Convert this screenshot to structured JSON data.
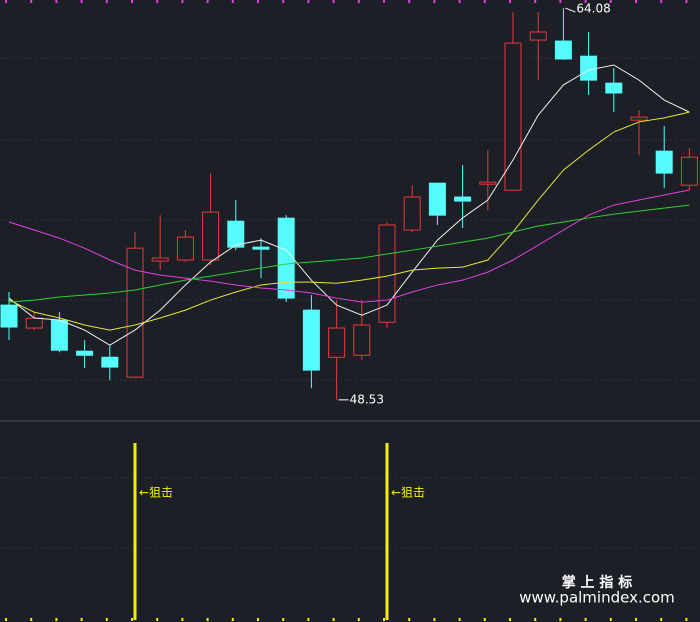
{
  "chart_data": [
    {
      "type": "candlestick",
      "ylim": [
        47.73,
        64.4
      ],
      "up_color": "#e8383a",
      "down_color": "#54fcfc",
      "open": [
        52.29,
        51.38,
        51.69,
        50.46,
        50.22,
        49.43,
        54.04,
        54.08,
        54.08,
        55.62,
        54.59,
        55.74,
        52.09,
        50.22,
        50.3,
        51.61,
        55.27,
        57.13,
        56.58,
        57.09,
        56.85,
        62.81,
        62.77,
        62.17,
        61.1,
        59.63,
        58.4,
        57.05
      ],
      "high": [
        52.81,
        52.01,
        52.01,
        50.9,
        50.7,
        55.19,
        55.86,
        55.27,
        57.53,
        56.46,
        54.95,
        55.86,
        52.69,
        52.49,
        52.49,
        55.59,
        57.05,
        57.13,
        57.85,
        58.44,
        63.9,
        63.92,
        64.08,
        63.13,
        61.7,
        60.03,
        59.4,
        58.52
      ],
      "low": [
        50.9,
        51.3,
        50.42,
        49.79,
        49.31,
        49.39,
        53.68,
        54.0,
        53.88,
        54.47,
        53.36,
        52.41,
        48.99,
        48.53,
        50.11,
        51.38,
        55.19,
        55.47,
        55.35,
        56.06,
        56.85,
        61.22,
        62.02,
        60.63,
        59.95,
        58.24,
        56.93,
        56.85
      ],
      "close": [
        51.42,
        51.77,
        50.5,
        50.3,
        49.83,
        54.55,
        54.16,
        54.99,
        55.98,
        54.59,
        54.51,
        52.57,
        49.71,
        51.38,
        51.5,
        55.47,
        56.58,
        55.86,
        56.42,
        57.17,
        62.69,
        63.13,
        62.06,
        61.22,
        60.71,
        59.75,
        57.53,
        58.16
      ],
      "series": [
        {
          "color": "#f0f0f0",
          "values": [
            52.57,
            51.78,
            51.7,
            51.3,
            50.7,
            51.3,
            52.09,
            53.09,
            54.0,
            54.67,
            54.87,
            54.47,
            53.28,
            52.29,
            51.89,
            52.29,
            53.6,
            54.87,
            55.75,
            56.46,
            58.05,
            59.83,
            61.03,
            61.62,
            61.82,
            61.22,
            60.43,
            59.95
          ]
        },
        {
          "color": "#e6e632",
          "values": [
            52.49,
            52.01,
            51.78,
            51.5,
            51.3,
            51.5,
            51.78,
            52.09,
            52.49,
            52.81,
            53.09,
            53.2,
            53.2,
            53.16,
            53.28,
            53.44,
            53.68,
            53.76,
            53.8,
            54.08,
            55.19,
            56.46,
            57.65,
            58.44,
            59.16,
            59.56,
            59.72,
            59.95
          ]
        },
        {
          "color": "#e040e0",
          "values": [
            55.59,
            55.27,
            54.95,
            54.55,
            54.08,
            53.68,
            53.48,
            53.36,
            53.24,
            53.09,
            52.97,
            52.89,
            52.77,
            52.57,
            52.41,
            52.49,
            52.81,
            53.09,
            53.28,
            53.6,
            54.08,
            54.67,
            55.27,
            55.86,
            56.26,
            56.46,
            56.66,
            56.86
          ]
        },
        {
          "color": "#30d030",
          "values": [
            52.41,
            52.49,
            52.61,
            52.69,
            52.77,
            52.89,
            53.09,
            53.28,
            53.44,
            53.6,
            53.76,
            53.92,
            54.0,
            54.08,
            54.16,
            54.32,
            54.47,
            54.63,
            54.79,
            54.95,
            55.19,
            55.43,
            55.59,
            55.75,
            55.9,
            56.02,
            56.14,
            56.26
          ]
        }
      ],
      "annotations": [
        64.08,
        48.53
      ]
    },
    {
      "type": "signal",
      "label": "←狙击",
      "color": "#f5f000",
      "ylim": [
        0,
        1
      ],
      "values": [
        0,
        0,
        0,
        0,
        0,
        1,
        0,
        0,
        0,
        0,
        0,
        0,
        0,
        0,
        0,
        1,
        0,
        0,
        0,
        0,
        0,
        0,
        0,
        0,
        0,
        0,
        0,
        0
      ]
    }
  ],
  "watermark": {
    "title": "掌 上 指 标",
    "url": "www.palmindex.com"
  }
}
